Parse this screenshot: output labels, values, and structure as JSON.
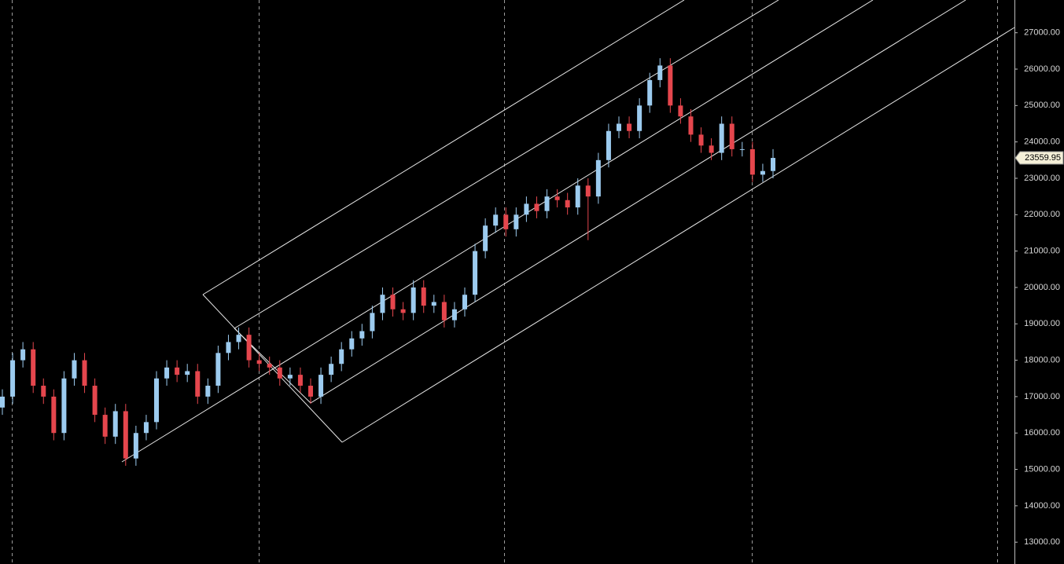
{
  "chart_data": {
    "type": "candlestick",
    "up_color": "#9ccbef",
    "down_color": "#e5464d",
    "open": [
      16700,
      17000,
      18000,
      18300,
      17300,
      17000,
      16000,
      17500,
      18000,
      17300,
      16500,
      15900,
      16600,
      15300,
      16000,
      16300,
      17500,
      17800,
      17600,
      17700,
      17000,
      17300,
      18200,
      18500,
      18700,
      18000,
      17900,
      17800,
      17500,
      17600,
      17300,
      17000,
      17600,
      17900,
      18300,
      18600,
      18800,
      19300,
      19800,
      19400,
      19300,
      20000,
      19500,
      19600,
      19100,
      19400,
      19800,
      21000,
      21700,
      22000,
      21600,
      22000,
      22300,
      22100,
      22500,
      22400,
      22200,
      22800,
      22500,
      23500,
      24300,
      24500,
      24300,
      25000,
      25700,
      26100,
      25000,
      24700,
      24200,
      23900,
      23700,
      24500,
      23800,
      23800,
      23100,
      23200
    ],
    "high": [
      17200,
      18200,
      18500,
      18500,
      17500,
      17200,
      17700,
      18200,
      18200,
      17500,
      16700,
      16800,
      16800,
      16200,
      16500,
      17700,
      18000,
      18000,
      17900,
      17900,
      17500,
      18400,
      18700,
      18900,
      18900,
      18200,
      18100,
      18000,
      17800,
      17800,
      17500,
      17800,
      18100,
      18500,
      18800,
      19000,
      19500,
      20000,
      20000,
      19600,
      20200,
      20200,
      19800,
      19800,
      19600,
      20000,
      21200,
      21900,
      22200,
      22200,
      22200,
      22500,
      22500,
      22700,
      22700,
      22600,
      23000,
      23000,
      23700,
      24500,
      24700,
      24700,
      25200,
      25900,
      26300,
      26300,
      25200,
      24900,
      24400,
      24100,
      24700,
      24700,
      24000,
      24000,
      23400,
      23800
    ],
    "low": [
      16500,
      16800,
      17800,
      17100,
      16800,
      15800,
      15800,
      17300,
      17100,
      16300,
      15700,
      15700,
      15100,
      15100,
      15800,
      16100,
      17300,
      17400,
      17400,
      16800,
      16800,
      17100,
      18000,
      18300,
      17800,
      17700,
      17600,
      17300,
      17300,
      17100,
      16800,
      16800,
      17400,
      17700,
      18100,
      18400,
      18600,
      19100,
      19200,
      19100,
      19100,
      19300,
      19300,
      18900,
      18900,
      19200,
      19600,
      20800,
      21500,
      21400,
      21400,
      21800,
      21900,
      21900,
      22200,
      22000,
      22000,
      21300,
      22300,
      23300,
      24100,
      24100,
      24100,
      24800,
      25500,
      24800,
      24500,
      24000,
      23700,
      23500,
      23500,
      23600,
      23600,
      22900,
      22900,
      23000
    ],
    "close": [
      17000,
      18000,
      18300,
      17300,
      17000,
      16000,
      17500,
      18000,
      17300,
      16500,
      15900,
      16600,
      15300,
      16000,
      16300,
      17500,
      17800,
      17600,
      17700,
      17000,
      17300,
      18200,
      18500,
      18700,
      18000,
      17900,
      17800,
      17500,
      17600,
      17300,
      17000,
      17600,
      17900,
      18300,
      18600,
      18800,
      19300,
      19800,
      19400,
      19300,
      20000,
      19500,
      19600,
      19100,
      19400,
      19800,
      21000,
      21700,
      22000,
      21600,
      22000,
      22300,
      22100,
      22500,
      22400,
      22200,
      22800,
      22500,
      23500,
      24300,
      24500,
      24300,
      25000,
      25700,
      26100,
      25000,
      24700,
      24200,
      23900,
      23700,
      24500,
      23800,
      23800,
      23100,
      23200,
      23559.95
    ],
    "ylim": [
      12400,
      27900
    ],
    "yticks": [
      {
        "value": 13000,
        "label": "13000.00"
      },
      {
        "value": 14000,
        "label": "14000.00"
      },
      {
        "value": 15000,
        "label": "15000.00"
      },
      {
        "value": 16000,
        "label": "16000.00"
      },
      {
        "value": 17000,
        "label": "17000.00"
      },
      {
        "value": 18000,
        "label": "18000.00"
      },
      {
        "value": 19000,
        "label": "19000.00"
      },
      {
        "value": 20000,
        "label": "20000.00"
      },
      {
        "value": 21000,
        "label": "21000.00"
      },
      {
        "value": 22000,
        "label": "22000.00"
      },
      {
        "value": 23000,
        "label": "23000.00"
      },
      {
        "value": 24000,
        "label": "24000.00"
      },
      {
        "value": 25000,
        "label": "25000.00"
      },
      {
        "value": 26000,
        "label": "26000.00"
      },
      {
        "value": 27000,
        "label": "27000.00"
      }
    ]
  }
}
